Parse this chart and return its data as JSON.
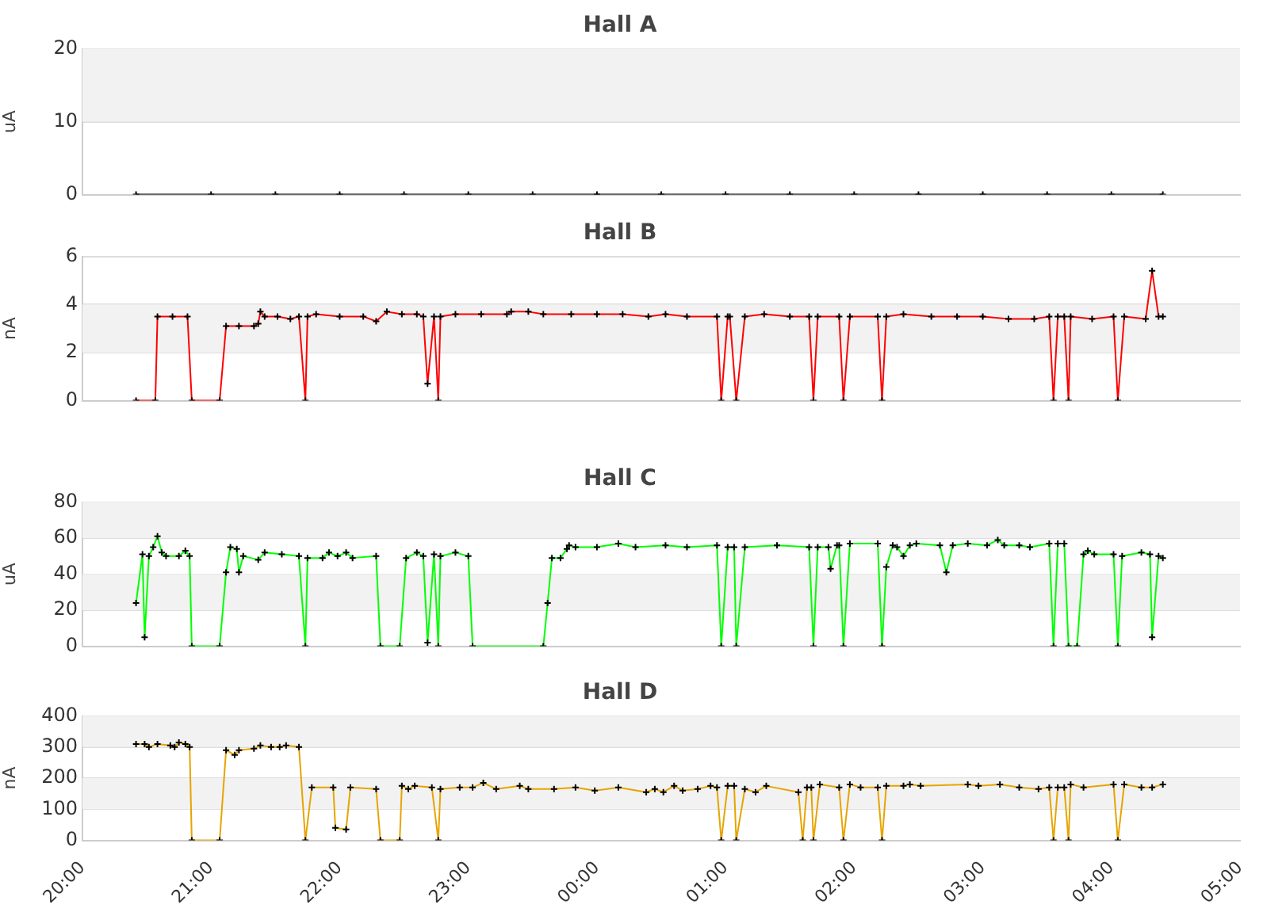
{
  "chart_data": [
    {
      "type": "line",
      "title": "Hall A",
      "ylabel": "uA",
      "color": "#000000",
      "marker": "cross",
      "grid": "y",
      "tick_labels": "y",
      "bands": [
        {
          "axis": "y",
          "from": 10,
          "to": 20,
          "color": "#f2f2f2"
        }
      ],
      "xlim": [
        "2000-01-01T20:00",
        "2000-01-02T05:00"
      ],
      "ylim": [
        0,
        20
      ],
      "yticks": [
        0,
        10,
        20
      ],
      "x": [
        "2000-01-01T20:25",
        "2000-01-01T21:00",
        "2000-01-01T21:30",
        "2000-01-01T22:00",
        "2000-01-01T22:30",
        "2000-01-01T23:00",
        "2000-01-01T23:30",
        "2000-01-02T00:00",
        "2000-01-02T00:30",
        "2000-01-02T01:00",
        "2000-01-02T01:30",
        "2000-01-02T02:00",
        "2000-01-02T02:30",
        "2000-01-02T03:00",
        "2000-01-02T03:30",
        "2000-01-02T04:00",
        "2000-01-02T04:24"
      ],
      "values": [
        0,
        0,
        0,
        0,
        0,
        0,
        0,
        0,
        0,
        0,
        0,
        0,
        0,
        0,
        0,
        0,
        0
      ]
    },
    {
      "type": "line",
      "title": "Hall B",
      "ylabel": "nA",
      "color": "#ff0000",
      "marker": "cross",
      "grid": "y",
      "tick_labels": "y",
      "bands": [
        {
          "axis": "y",
          "from": 2,
          "to": 4,
          "color": "#f2f2f2"
        }
      ],
      "xlim": [
        "2000-01-01T20:00",
        "2000-01-02T05:00"
      ],
      "ylim": [
        0,
        6
      ],
      "yticks": [
        0,
        2,
        4,
        6
      ],
      "x": [
        "2000-01-01T20:25",
        "2000-01-01T20:34",
        "2000-01-01T20:35",
        "2000-01-01T20:42",
        "2000-01-01T20:49",
        "2000-01-01T20:51",
        "2000-01-01T21:04",
        "2000-01-01T21:07",
        "2000-01-01T21:13",
        "2000-01-01T21:20",
        "2000-01-01T21:22",
        "2000-01-01T21:23",
        "2000-01-01T21:25",
        "2000-01-01T21:31",
        "2000-01-01T21:37",
        "2000-01-01T21:41",
        "2000-01-01T21:44",
        "2000-01-01T21:45",
        "2000-01-01T21:49",
        "2000-01-01T22:00",
        "2000-01-01T22:11",
        "2000-01-01T22:17",
        "2000-01-01T22:22",
        "2000-01-01T22:29",
        "2000-01-01T22:36",
        "2000-01-01T22:39",
        "2000-01-01T22:41",
        "2000-01-01T22:44",
        "2000-01-01T22:46",
        "2000-01-01T22:47",
        "2000-01-01T22:54",
        "2000-01-01T23:06",
        "2000-01-01T23:18",
        "2000-01-01T23:20",
        "2000-01-01T23:28",
        "2000-01-01T23:35",
        "2000-01-01T23:48",
        "2000-01-02T00:00",
        "2000-01-02T00:12",
        "2000-01-02T00:24",
        "2000-01-02T00:32",
        "2000-01-02T00:42",
        "2000-01-02T00:56",
        "2000-01-02T00:58",
        "2000-01-02T01:01",
        "2000-01-02T01:02",
        "2000-01-02T01:05",
        "2000-01-02T01:09",
        "2000-01-02T01:18",
        "2000-01-02T01:30",
        "2000-01-02T01:39",
        "2000-01-02T01:41",
        "2000-01-02T01:43",
        "2000-01-02T01:53",
        "2000-01-02T01:55",
        "2000-01-02T01:58",
        "2000-01-02T02:11",
        "2000-01-02T02:13",
        "2000-01-02T02:15",
        "2000-01-02T02:23",
        "2000-01-02T02:36",
        "2000-01-02T02:48",
        "2000-01-02T03:00",
        "2000-01-02T03:12",
        "2000-01-02T03:24",
        "2000-01-02T03:31",
        "2000-01-02T03:33",
        "2000-01-02T03:35",
        "2000-01-02T03:38",
        "2000-01-02T03:40",
        "2000-01-02T03:41",
        "2000-01-02T03:51",
        "2000-01-02T04:01",
        "2000-01-02T04:03",
        "2000-01-02T04:06",
        "2000-01-02T04:16",
        "2000-01-02T04:19",
        "2000-01-02T04:22",
        "2000-01-02T04:24"
      ],
      "values": [
        0,
        0,
        3.5,
        3.5,
        3.5,
        0,
        0,
        3.1,
        3.1,
        3.1,
        3.2,
        3.7,
        3.5,
        3.5,
        3.4,
        3.5,
        0,
        3.5,
        3.6,
        3.5,
        3.5,
        3.3,
        3.7,
        3.6,
        3.6,
        3.5,
        0.7,
        3.5,
        0,
        3.5,
        3.6,
        3.6,
        3.6,
        3.7,
        3.7,
        3.6,
        3.6,
        3.6,
        3.6,
        3.5,
        3.6,
        3.5,
        3.5,
        0,
        3.5,
        3.5,
        0,
        3.5,
        3.6,
        3.5,
        3.5,
        0,
        3.5,
        3.5,
        0,
        3.5,
        3.5,
        0,
        3.5,
        3.6,
        3.5,
        3.5,
        3.5,
        3.4,
        3.4,
        3.5,
        0,
        3.5,
        3.5,
        0,
        3.5,
        3.4,
        3.5,
        0,
        3.5,
        3.4,
        5.4,
        3.5,
        3.5
      ]
    },
    {
      "type": "line",
      "title": "Hall C",
      "ylabel": "uA",
      "color": "#00ff00",
      "marker": "cross",
      "grid": "y",
      "tick_labels": "y",
      "bands": [
        {
          "axis": "y",
          "from": 20,
          "to": 40,
          "color": "#f2f2f2"
        },
        {
          "axis": "y",
          "from": 60,
          "to": 80,
          "color": "#f2f2f2"
        }
      ],
      "xlim": [
        "2000-01-01T20:00",
        "2000-01-02T05:00"
      ],
      "ylim": [
        0,
        80
      ],
      "yticks": [
        0,
        20,
        40,
        60,
        80
      ],
      "x": [
        "2000-01-01T20:25",
        "2000-01-01T20:28",
        "2000-01-01T20:29",
        "2000-01-01T20:31",
        "2000-01-01T20:33",
        "2000-01-01T20:35",
        "2000-01-01T20:37",
        "2000-01-01T20:39",
        "2000-01-01T20:45",
        "2000-01-01T20:48",
        "2000-01-01T20:50",
        "2000-01-01T20:51",
        "2000-01-01T21:04",
        "2000-01-01T21:07",
        "2000-01-01T21:09",
        "2000-01-01T21:12",
        "2000-01-01T21:13",
        "2000-01-01T21:15",
        "2000-01-01T21:22",
        "2000-01-01T21:25",
        "2000-01-01T21:33",
        "2000-01-01T21:41",
        "2000-01-01T21:44",
        "2000-01-01T21:45",
        "2000-01-01T21:52",
        "2000-01-01T21:55",
        "2000-01-01T21:59",
        "2000-01-01T22:03",
        "2000-01-01T22:06",
        "2000-01-01T22:17",
        "2000-01-01T22:19",
        "2000-01-01T22:28",
        "2000-01-01T22:31",
        "2000-01-01T22:36",
        "2000-01-01T22:39",
        "2000-01-01T22:41",
        "2000-01-01T22:44",
        "2000-01-01T22:46",
        "2000-01-01T22:47",
        "2000-01-01T22:54",
        "2000-01-01T23:00",
        "2000-01-01T23:02",
        "2000-01-01T23:35",
        "2000-01-01T23:37",
        "2000-01-01T23:39",
        "2000-01-01T23:43",
        "2000-01-01T23:46",
        "2000-01-01T23:47",
        "2000-01-01T23:50",
        "2000-01-02T00:00",
        "2000-01-02T00:10",
        "2000-01-02T00:18",
        "2000-01-02T00:32",
        "2000-01-02T00:42",
        "2000-01-02T00:56",
        "2000-01-02T00:58",
        "2000-01-02T01:01",
        "2000-01-02T01:04",
        "2000-01-02T01:05",
        "2000-01-02T01:09",
        "2000-01-02T01:24",
        "2000-01-02T01:39",
        "2000-01-02T01:41",
        "2000-01-02T01:43",
        "2000-01-02T01:48",
        "2000-01-02T01:49",
        "2000-01-02T01:52",
        "2000-01-02T01:53",
        "2000-01-02T01:55",
        "2000-01-02T01:58",
        "2000-01-02T02:11",
        "2000-01-02T02:13",
        "2000-01-02T02:15",
        "2000-01-02T02:18",
        "2000-01-02T02:20",
        "2000-01-02T02:23",
        "2000-01-02T02:26",
        "2000-01-02T02:29",
        "2000-01-02T02:40",
        "2000-01-02T02:43",
        "2000-01-02T02:46",
        "2000-01-02T02:53",
        "2000-01-02T03:02",
        "2000-01-02T03:07",
        "2000-01-02T03:10",
        "2000-01-02T03:17",
        "2000-01-02T03:22",
        "2000-01-02T03:31",
        "2000-01-02T03:33",
        "2000-01-02T03:35",
        "2000-01-02T03:38",
        "2000-01-02T03:40",
        "2000-01-02T03:44",
        "2000-01-02T03:47",
        "2000-01-02T03:49",
        "2000-01-02T03:52",
        "2000-01-02T04:01",
        "2000-01-02T04:03",
        "2000-01-02T04:05",
        "2000-01-02T04:14",
        "2000-01-02T04:18",
        "2000-01-02T04:19",
        "2000-01-02T04:22",
        "2000-01-02T04:24"
      ],
      "values": [
        24,
        51,
        5,
        50,
        55,
        61,
        52,
        50,
        50,
        53,
        50,
        0,
        0,
        41,
        55,
        54,
        41,
        50,
        48,
        52,
        51,
        50,
        0,
        49,
        49,
        52,
        50,
        52,
        49,
        50,
        0,
        0,
        49,
        52,
        50,
        2,
        51,
        0,
        50,
        52,
        50,
        0,
        0,
        24,
        49,
        49,
        54,
        56,
        55,
        55,
        57,
        55,
        56,
        55,
        56,
        0,
        55,
        55,
        0,
        55,
        56,
        55,
        0,
        55,
        55,
        43,
        56,
        56,
        0,
        57,
        57,
        0,
        44,
        56,
        55,
        50,
        56,
        57,
        56,
        41,
        56,
        57,
        56,
        59,
        56,
        56,
        55,
        57,
        0,
        57,
        57,
        0,
        0,
        51,
        53,
        51,
        51,
        0,
        50,
        52,
        51,
        5,
        50,
        49
      ]
    },
    {
      "type": "line",
      "title": "Hall D",
      "ylabel": "nA",
      "color": "#e6a400",
      "marker": "cross",
      "grid": "y",
      "bands": [
        {
          "axis": "y",
          "from": 100,
          "to": 200,
          "color": "#f2f2f2"
        },
        {
          "axis": "y",
          "from": 300,
          "to": 400,
          "color": "#f2f2f2"
        }
      ],
      "xlim": [
        "2000-01-01T20:00",
        "2000-01-02T05:00"
      ],
      "xticks": [
        {
          "value": "2000-01-01T20:00",
          "label": "20:00"
        },
        {
          "value": "2000-01-01T21:00",
          "label": "21:00"
        },
        {
          "value": "2000-01-01T22:00",
          "label": "22:00"
        },
        {
          "value": "2000-01-01T23:00",
          "label": "23:00"
        },
        {
          "value": "2000-01-02T00:00",
          "label": "00:00"
        },
        {
          "value": "2000-01-02T01:00",
          "label": "01:00"
        },
        {
          "value": "2000-01-02T02:00",
          "label": "02:00"
        },
        {
          "value": "2000-01-02T03:00",
          "label": "03:00"
        },
        {
          "value": "2000-01-02T04:00",
          "label": "04:00"
        },
        {
          "value": "2000-01-02T05:00",
          "label": "05:00"
        }
      ],
      "ylim": [
        0,
        400
      ],
      "yticks": [
        0,
        100,
        200,
        300,
        400
      ],
      "x": [
        "2000-01-01T20:25",
        "2000-01-01T20:29",
        "2000-01-01T20:31",
        "2000-01-01T20:35",
        "2000-01-01T20:41",
        "2000-01-01T20:43",
        "2000-01-01T20:45",
        "2000-01-01T20:48",
        "2000-01-01T20:50",
        "2000-01-01T20:51",
        "2000-01-01T21:04",
        "2000-01-01T21:07",
        "2000-01-01T21:11",
        "2000-01-01T21:13",
        "2000-01-01T21:20",
        "2000-01-01T21:23",
        "2000-01-01T21:28",
        "2000-01-01T21:32",
        "2000-01-01T21:35",
        "2000-01-01T21:41",
        "2000-01-01T21:44",
        "2000-01-01T21:47",
        "2000-01-01T21:57",
        "2000-01-01T21:58",
        "2000-01-01T22:03",
        "2000-01-01T22:05",
        "2000-01-01T22:17",
        "2000-01-01T22:19",
        "2000-01-01T22:28",
        "2000-01-01T22:29",
        "2000-01-01T22:32",
        "2000-01-01T22:35",
        "2000-01-01T22:43",
        "2000-01-01T22:46",
        "2000-01-01T22:47",
        "2000-01-01T22:56",
        "2000-01-01T23:02",
        "2000-01-01T23:07",
        "2000-01-01T23:13",
        "2000-01-01T23:24",
        "2000-01-01T23:28",
        "2000-01-01T23:40",
        "2000-01-01T23:50",
        "2000-01-01T23:59",
        "2000-01-02T00:10",
        "2000-01-02T00:23",
        "2000-01-02T00:27",
        "2000-01-02T00:31",
        "2000-01-02T00:36",
        "2000-01-02T00:40",
        "2000-01-02T00:47",
        "2000-01-02T00:53",
        "2000-01-02T00:56",
        "2000-01-02T00:58",
        "2000-01-02T01:01",
        "2000-01-02T01:04",
        "2000-01-02T01:05",
        "2000-01-02T01:09",
        "2000-01-02T01:14",
        "2000-01-02T01:19",
        "2000-01-02T01:34",
        "2000-01-02T01:36",
        "2000-01-02T01:38",
        "2000-01-02T01:40",
        "2000-01-02T01:41",
        "2000-01-02T01:44",
        "2000-01-02T01:53",
        "2000-01-02T01:55",
        "2000-01-02T01:58",
        "2000-01-02T02:03",
        "2000-01-02T02:11",
        "2000-01-02T02:13",
        "2000-01-02T02:15",
        "2000-01-02T02:23",
        "2000-01-02T02:26",
        "2000-01-02T02:31",
        "2000-01-02T02:53",
        "2000-01-02T02:58",
        "2000-01-02T03:08",
        "2000-01-02T03:17",
        "2000-01-02T03:26",
        "2000-01-02T03:31",
        "2000-01-02T03:33",
        "2000-01-02T03:35",
        "2000-01-02T03:38",
        "2000-01-02T03:40",
        "2000-01-02T03:41",
        "2000-01-02T03:47",
        "2000-01-02T04:01",
        "2000-01-02T04:03",
        "2000-01-02T04:06",
        "2000-01-02T04:14",
        "2000-01-02T04:19",
        "2000-01-02T04:24"
      ],
      "values": [
        310,
        310,
        300,
        310,
        305,
        300,
        315,
        310,
        300,
        0,
        0,
        290,
        275,
        290,
        295,
        305,
        300,
        300,
        305,
        300,
        0,
        170,
        170,
        40,
        35,
        170,
        165,
        0,
        0,
        175,
        165,
        175,
        170,
        0,
        165,
        170,
        170,
        185,
        165,
        175,
        165,
        165,
        170,
        160,
        170,
        155,
        165,
        155,
        175,
        160,
        165,
        175,
        170,
        0,
        175,
        175,
        0,
        165,
        155,
        175,
        155,
        0,
        170,
        170,
        0,
        180,
        170,
        0,
        180,
        170,
        170,
        0,
        175,
        175,
        180,
        175,
        180,
        175,
        180,
        170,
        165,
        170,
        0,
        170,
        170,
        0,
        180,
        170,
        180,
        0,
        180,
        170,
        170,
        180
      ]
    }
  ]
}
